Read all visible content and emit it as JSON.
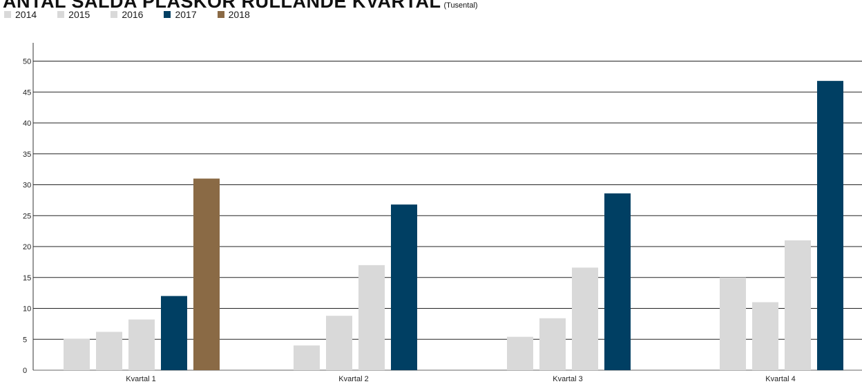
{
  "header": {
    "title": "ANTAL SÅLDA PLASKOR RULLANDE KVARTAL",
    "subtitle": "(Tusental)"
  },
  "chart_data": {
    "type": "bar",
    "categories": [
      "Kvartal 1",
      "Kvartal 2",
      "Kvartal 3",
      "Kvartal 4"
    ],
    "series": [
      {
        "name": "2014",
        "color": "#d9d9d9",
        "values": [
          5.1,
          null,
          null,
          null
        ]
      },
      {
        "name": "2015",
        "color": "#d9d9d9",
        "values": [
          6.2,
          4.0,
          5.4,
          15.0
        ]
      },
      {
        "name": "2016",
        "color": "#d9d9d9",
        "values": [
          8.2,
          8.8,
          8.4,
          11.0
        ]
      },
      {
        "name": "2017",
        "color": "#d9d9d9",
        "values": [
          null,
          17.0,
          16.6,
          21.0
        ]
      },
      {
        "name": "2018",
        "color": "#8a6a45",
        "values": [
          null,
          null,
          null,
          null
        ]
      }
    ],
    "bars": [
      [
        {
          "value": 5.1,
          "color": "#d9d9d9"
        },
        {
          "value": 6.2,
          "color": "#d9d9d9"
        },
        {
          "value": 8.2,
          "color": "#d9d9d9"
        },
        {
          "value": 12.0,
          "color": "#003f63"
        },
        {
          "value": 31.0,
          "color": "#8a6a45"
        }
      ],
      [
        {
          "value": 4.0,
          "color": "#d9d9d9"
        },
        {
          "value": 8.8,
          "color": "#d9d9d9"
        },
        {
          "value": 17.0,
          "color": "#d9d9d9"
        },
        {
          "value": 26.8,
          "color": "#003f63"
        }
      ],
      [
        {
          "value": 5.4,
          "color": "#d9d9d9"
        },
        {
          "value": 8.4,
          "color": "#d9d9d9"
        },
        {
          "value": 16.6,
          "color": "#d9d9d9"
        },
        {
          "value": 28.6,
          "color": "#003f63"
        }
      ],
      [
        {
          "value": 15.0,
          "color": "#d9d9d9"
        },
        {
          "value": 11.0,
          "color": "#d9d9d9"
        },
        {
          "value": 21.0,
          "color": "#d9d9d9"
        },
        {
          "value": 46.8,
          "color": "#003f63"
        }
      ]
    ],
    "yticks": [
      "0",
      "5",
      "10",
      "15",
      "20",
      "25",
      "30",
      "35",
      "40",
      "45",
      "50"
    ],
    "ylim": [
      0,
      50
    ],
    "grid": true,
    "legend": {
      "placement": "top-left",
      "items": [
        {
          "label": "2014",
          "color": "#d9d9d9"
        },
        {
          "label": "2015",
          "color": "#d9d9d9"
        },
        {
          "label": "2016",
          "color": "#d9d9d9"
        },
        {
          "label": "2017",
          "color": "#003f63"
        },
        {
          "label": "2018",
          "color": "#8a6a45"
        }
      ]
    }
  }
}
